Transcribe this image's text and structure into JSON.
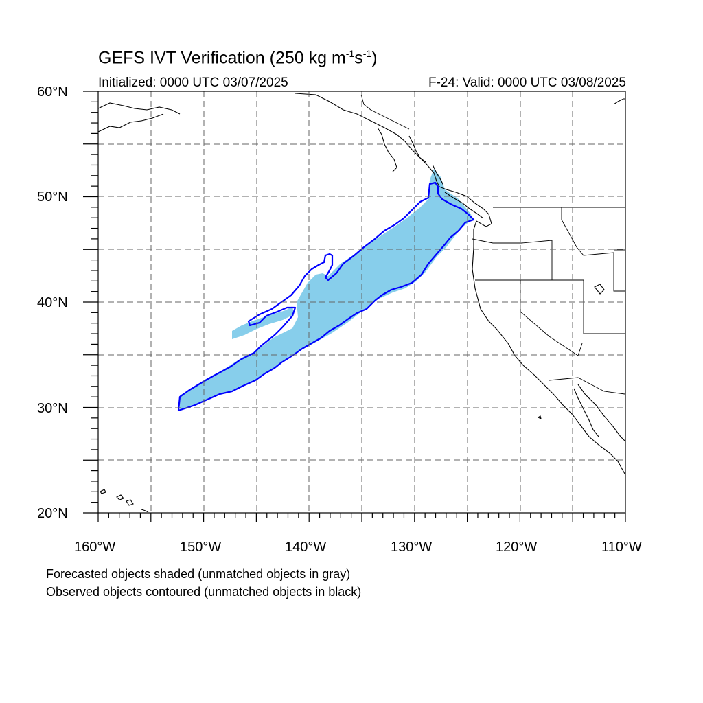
{
  "title": {
    "prefix": "GEFS IVT Verification (250 kg m",
    "exp1": "-1",
    "mid": "s",
    "exp2": "-1",
    "suffix": ")"
  },
  "initialized": "Initialized: 0000 UTC 03/07/2025",
  "valid": "F-24: Valid: 0000 UTC 03/08/2025",
  "map": {
    "lon_range": [
      -160,
      -110
    ],
    "lat_range": [
      20,
      60
    ],
    "lat_labels": [
      "60°N",
      "50°N",
      "40°N",
      "30°N",
      "20°N"
    ],
    "lon_labels": [
      "160°W",
      "150°W",
      "140°W",
      "130°W",
      "120°W",
      "110°W"
    ],
    "grid_style": "dashed",
    "forecast_color": "#87ceeb",
    "observed_color": "#0000ff"
  },
  "notes": {
    "line1": "Forecasted objects shaded (unmatched objects in gray)",
    "line2": "Observed objects contoured (unmatched objects in black)"
  }
}
